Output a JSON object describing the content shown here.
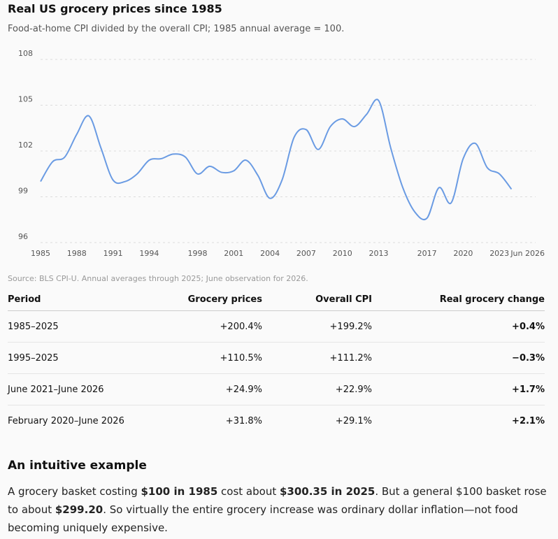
{
  "title": "Real US grocery prices since 1985",
  "subtitle": "Food-at-home CPI divided by the overall CPI; 1985 annual average = 100.",
  "source": "Source: BLS CPI-U. Annual averages through 2025; June observation for 2026.",
  "chart_data": {
    "type": "line",
    "title": "Real US grocery prices since 1985",
    "ylim": [
      96,
      108
    ],
    "xlim": [
      1985,
      2026
    ],
    "yticks": [
      "96",
      "99",
      "102",
      "105",
      "108"
    ],
    "xticks": [
      {
        "x": 1985,
        "label": "1985"
      },
      {
        "x": 1988,
        "label": "1988"
      },
      {
        "x": 1991,
        "label": "1991"
      },
      {
        "x": 1994,
        "label": "1994"
      },
      {
        "x": 1998,
        "label": "1998"
      },
      {
        "x": 2001,
        "label": "2001"
      },
      {
        "x": 2004,
        "label": "2004"
      },
      {
        "x": 2007,
        "label": "2007"
      },
      {
        "x": 2010,
        "label": "2010"
      },
      {
        "x": 2013,
        "label": "2013"
      },
      {
        "x": 2017,
        "label": "2017"
      },
      {
        "x": 2020,
        "label": "2020"
      },
      {
        "x": 2023,
        "label": "2023"
      },
      {
        "x": 2026,
        "label": "Jun 2026"
      }
    ],
    "grid": true,
    "line_color": "#6a9be3",
    "series": [
      {
        "x": [
          1985,
          1986,
          1987,
          1988,
          1989,
          1990,
          1991,
          1992,
          1993,
          1994,
          1995,
          1996,
          1997,
          1998,
          1999,
          2000,
          2001,
          2002,
          2003,
          2004,
          2005,
          2006,
          2007,
          2008,
          2009,
          2010,
          2011,
          2012,
          2013,
          2014,
          2015,
          2016,
          2017,
          2018,
          2019,
          2020,
          2021,
          2022,
          2023,
          2024,
          2025,
          2026
        ],
        "values": [
          100.0,
          101.3,
          101.6,
          103.1,
          104.3,
          102.2,
          100.1,
          100.0,
          100.5,
          101.4,
          101.5,
          101.8,
          101.6,
          100.5,
          101.0,
          100.6,
          100.7,
          101.4,
          100.4,
          98.9,
          100.1,
          102.9,
          103.4,
          102.1,
          103.6,
          104.1,
          103.6,
          104.4,
          105.3,
          102.2,
          99.6,
          98.0,
          97.6,
          99.6,
          98.6,
          101.5,
          102.5,
          100.9,
          100.5,
          99.5,
          null,
          null
        ]
      }
    ]
  },
  "table": {
    "headers": {
      "period": "Period",
      "grocery": "Grocery prices",
      "overall": "Overall CPI",
      "real": "Real grocery change"
    },
    "rows": [
      {
        "period": "1985–2025",
        "grocery": "+200.4%",
        "overall": "+199.2%",
        "real": "+0.4%"
      },
      {
        "period": "1995–2025",
        "grocery": "+110.5%",
        "overall": "+111.2%",
        "real": "−0.3%"
      },
      {
        "period": "June 2021–June 2026",
        "grocery": "+24.9%",
        "overall": "+22.9%",
        "real": "+1.7%"
      },
      {
        "period": "February 2020–June 2026",
        "grocery": "+31.8%",
        "overall": "+29.1%",
        "real": "+2.1%"
      }
    ]
  },
  "example": {
    "heading": "An intuitive example",
    "p1": "A grocery basket costing ",
    "b1": "$100 in 1985",
    "p2": " cost about ",
    "b2": "$300.35 in 2025",
    "p3": ". But a general $100 basket rose to about ",
    "b3": "$299.20",
    "p4": ". So virtually the entire grocery increase was ordinary dollar inflation—not food becoming uniquely expensive."
  }
}
